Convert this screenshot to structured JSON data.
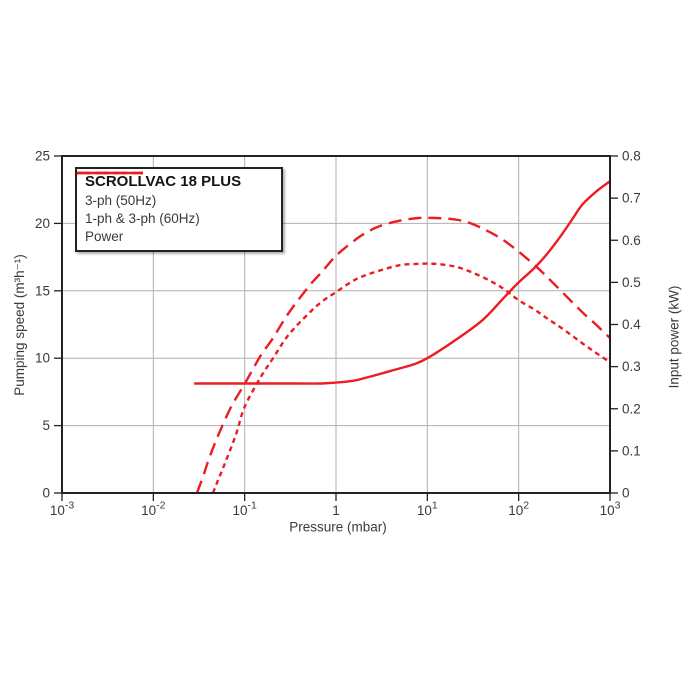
{
  "chart_data": {
    "type": "line",
    "x_axis": {
      "label": "Pressure (mbar)",
      "scale": "log",
      "min": 0.001,
      "max": 1000,
      "ticks": [
        {
          "v": 0.001,
          "base": "10",
          "exp": "-3"
        },
        {
          "v": 0.01,
          "base": "10",
          "exp": "-2"
        },
        {
          "v": 0.1,
          "base": "10",
          "exp": "-1"
        },
        {
          "v": 1,
          "base": "1",
          "exp": ""
        },
        {
          "v": 10,
          "base": "10",
          "exp": "1"
        },
        {
          "v": 100,
          "base": "10",
          "exp": "2"
        },
        {
          "v": 1000,
          "base": "10",
          "exp": "3"
        }
      ]
    },
    "y_axis_left": {
      "label": "Pumping speed (m³h⁻¹)",
      "min": 0,
      "max": 25,
      "ticks": [
        {
          "v": 0,
          "label": "0"
        },
        {
          "v": 5,
          "label": "5"
        },
        {
          "v": 10,
          "label": "10"
        },
        {
          "v": 15,
          "label": "15"
        },
        {
          "v": 20,
          "label": "20"
        },
        {
          "v": 25,
          "label": "25"
        }
      ]
    },
    "y_axis_right": {
      "label": "Input power (kW)",
      "min": 0,
      "max": 0.8,
      "ticks": [
        {
          "v": 0,
          "label": "0"
        },
        {
          "v": 0.1,
          "label": "0.1"
        },
        {
          "v": 0.2,
          "label": "0.2"
        },
        {
          "v": 0.3,
          "label": "0.3"
        },
        {
          "v": 0.4,
          "label": "0.4"
        },
        {
          "v": 0.5,
          "label": "0.5"
        },
        {
          "v": 0.6,
          "label": "0.6"
        },
        {
          "v": 0.7,
          "label": "0.7"
        },
        {
          "v": 0.8,
          "label": "0.8"
        }
      ]
    },
    "grid": true,
    "legend": {
      "title": "SCROLLVAC 18 PLUS",
      "position": "top-left"
    },
    "colors": {
      "series": "#ed1c24",
      "grid": "#b0b0b0",
      "axis": "#222222",
      "text": "#3a3a3a"
    },
    "series": [
      {
        "name": "3-ph (50Hz)",
        "axis": "left",
        "unit": "m³h⁻¹",
        "style": "short-dash",
        "points": [
          [
            0.045,
            0
          ],
          [
            0.05,
            0.8
          ],
          [
            0.06,
            2.1
          ],
          [
            0.08,
            4.3
          ],
          [
            0.1,
            6.4
          ],
          [
            0.15,
            8.6
          ],
          [
            0.2,
            9.9
          ],
          [
            0.3,
            11.7
          ],
          [
            0.5,
            13.3
          ],
          [
            0.7,
            14.2
          ],
          [
            1,
            14.9
          ],
          [
            1.5,
            15.7
          ],
          [
            2,
            16.1
          ],
          [
            3,
            16.5
          ],
          [
            5,
            16.9
          ],
          [
            8,
            17
          ],
          [
            12,
            17
          ],
          [
            20,
            16.8
          ],
          [
            30,
            16.4
          ],
          [
            50,
            15.7
          ],
          [
            70,
            15.1
          ],
          [
            100,
            14.3
          ],
          [
            150,
            13.6
          ],
          [
            200,
            13
          ],
          [
            300,
            12.2
          ],
          [
            500,
            11.1
          ],
          [
            700,
            10.4
          ],
          [
            1000,
            9.7
          ]
        ]
      },
      {
        "name": "1-ph & 3-ph (60Hz)",
        "axis": "left",
        "unit": "m³h⁻¹",
        "style": "long-dash",
        "points": [
          [
            0.03,
            0
          ],
          [
            0.035,
            1.2
          ],
          [
            0.04,
            2.4
          ],
          [
            0.05,
            4.1
          ],
          [
            0.07,
            6.3
          ],
          [
            0.1,
            8.1
          ],
          [
            0.15,
            10.2
          ],
          [
            0.2,
            11.4
          ],
          [
            0.3,
            13.3
          ],
          [
            0.5,
            15.3
          ],
          [
            0.7,
            16.4
          ],
          [
            1,
            17.6
          ],
          [
            1.5,
            18.6
          ],
          [
            2,
            19.2
          ],
          [
            3,
            19.8
          ],
          [
            5,
            20.2
          ],
          [
            8,
            20.4
          ],
          [
            12,
            20.4
          ],
          [
            20,
            20.3
          ],
          [
            30,
            20
          ],
          [
            50,
            19.3
          ],
          [
            70,
            18.7
          ],
          [
            100,
            17.9
          ],
          [
            150,
            16.9
          ],
          [
            200,
            16.1
          ],
          [
            300,
            14.9
          ],
          [
            500,
            13.4
          ],
          [
            700,
            12.5
          ],
          [
            1000,
            11.5
          ]
        ]
      },
      {
        "name": "Power",
        "axis": "right",
        "unit": "kW",
        "style": "solid",
        "points": [
          [
            0.028,
            0.26
          ],
          [
            0.05,
            0.26
          ],
          [
            0.1,
            0.26
          ],
          [
            0.2,
            0.26
          ],
          [
            0.4,
            0.26
          ],
          [
            0.7,
            0.26
          ],
          [
            1,
            0.262
          ],
          [
            1.5,
            0.266
          ],
          [
            2,
            0.272
          ],
          [
            4,
            0.29
          ],
          [
            7,
            0.305
          ],
          [
            10,
            0.32
          ],
          [
            20,
            0.362
          ],
          [
            40,
            0.41
          ],
          [
            70,
            0.465
          ],
          [
            100,
            0.5
          ],
          [
            150,
            0.535
          ],
          [
            200,
            0.565
          ],
          [
            300,
            0.615
          ],
          [
            400,
            0.655
          ],
          [
            500,
            0.685
          ],
          [
            700,
            0.715
          ],
          [
            1000,
            0.74
          ]
        ]
      }
    ]
  }
}
